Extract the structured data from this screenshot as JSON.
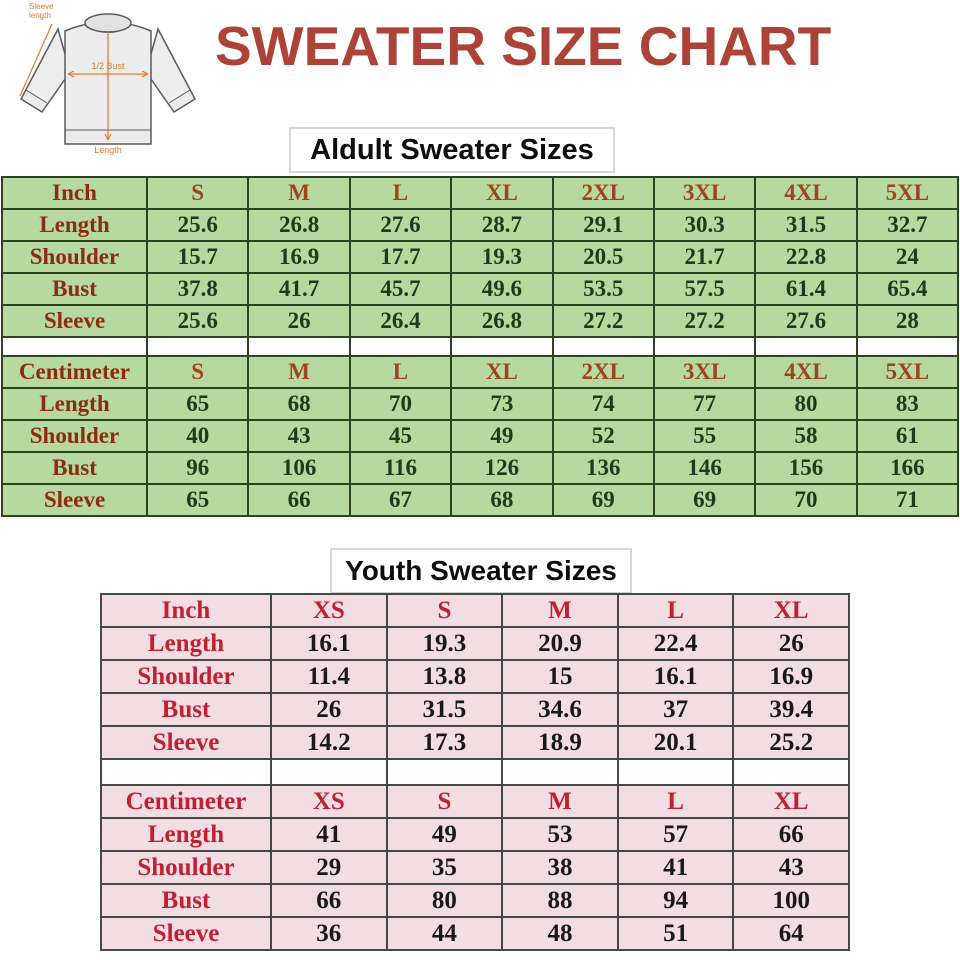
{
  "title": "SWEATER SIZE CHART",
  "illustration": {
    "sleeve_label_line1": "Sleeve",
    "sleeve_label_line2": "length",
    "bust_label": "1/2 Bust",
    "length_label": "Length"
  },
  "adult": {
    "heading": "Aldult Sweater Sizes",
    "sections": [
      {
        "unit": "Inch",
        "sizes": [
          "S",
          "M",
          "L",
          "XL",
          "2XL",
          "3XL",
          "4XL",
          "5XL"
        ],
        "rows": [
          {
            "label": "Length",
            "values": [
              "25.6",
              "26.8",
              "27.6",
              "28.7",
              "29.1",
              "30.3",
              "31.5",
              "32.7"
            ]
          },
          {
            "label": "Shoulder",
            "values": [
              "15.7",
              "16.9",
              "17.7",
              "19.3",
              "20.5",
              "21.7",
              "22.8",
              "24"
            ]
          },
          {
            "label": "Bust",
            "values": [
              "37.8",
              "41.7",
              "45.7",
              "49.6",
              "53.5",
              "57.5",
              "61.4",
              "65.4"
            ]
          },
          {
            "label": "Sleeve",
            "values": [
              "25.6",
              "26",
              "26.4",
              "26.8",
              "27.2",
              "27.2",
              "27.6",
              "28"
            ]
          }
        ]
      },
      {
        "unit": "Centimeter",
        "sizes": [
          "S",
          "M",
          "L",
          "XL",
          "2XL",
          "3XL",
          "4XL",
          "5XL"
        ],
        "rows": [
          {
            "label": "Length",
            "values": [
              "65",
              "68",
              "70",
              "73",
              "74",
              "77",
              "80",
              "83"
            ]
          },
          {
            "label": "Shoulder",
            "values": [
              "40",
              "43",
              "45",
              "49",
              "52",
              "55",
              "58",
              "61"
            ]
          },
          {
            "label": "Bust",
            "values": [
              "96",
              "106",
              "116",
              "126",
              "136",
              "146",
              "156",
              "166"
            ]
          },
          {
            "label": "Sleeve",
            "values": [
              "65",
              "66",
              "67",
              "68",
              "69",
              "69",
              "70",
              "71"
            ]
          }
        ]
      }
    ]
  },
  "youth": {
    "heading": "Youth Sweater Sizes",
    "sections": [
      {
        "unit": "Inch",
        "sizes": [
          "XS",
          "S",
          "M",
          "L",
          "XL"
        ],
        "rows": [
          {
            "label": "Length",
            "values": [
              "16.1",
              "19.3",
              "20.9",
              "22.4",
              "26"
            ]
          },
          {
            "label": "Shoulder",
            "values": [
              "11.4",
              "13.8",
              "15",
              "16.1",
              "16.9"
            ]
          },
          {
            "label": "Bust",
            "values": [
              "26",
              "31.5",
              "34.6",
              "37",
              "39.4"
            ]
          },
          {
            "label": "Sleeve",
            "values": [
              "14.2",
              "17.3",
              "18.9",
              "20.1",
              "25.2"
            ]
          }
        ]
      },
      {
        "unit": "Centimeter",
        "sizes": [
          "XS",
          "S",
          "M",
          "L",
          "XL"
        ],
        "rows": [
          {
            "label": "Length",
            "values": [
              "41",
              "49",
              "53",
              "57",
              "66"
            ]
          },
          {
            "label": "Shoulder",
            "values": [
              "29",
              "35",
              "38",
              "41",
              "43"
            ]
          },
          {
            "label": "Bust",
            "values": [
              "66",
              "80",
              "88",
              "94",
              "100"
            ]
          },
          {
            "label": "Sleeve",
            "values": [
              "36",
              "44",
              "48",
              "51",
              "64"
            ]
          }
        ]
      }
    ]
  },
  "colors": {
    "title": "#ad4338",
    "annotation_orange": "#e2772e",
    "adult_table_bg": "#b5d99e",
    "adult_table_border": "#2e4420",
    "adult_label_text": "#8f2b11",
    "adult_size_text": "#a2431f",
    "adult_value_text": "#203a1c",
    "youth_table_bg": "#f2dde3",
    "youth_table_border": "#474747",
    "youth_label_text": "#c02031",
    "youth_value_text": "#191919"
  }
}
